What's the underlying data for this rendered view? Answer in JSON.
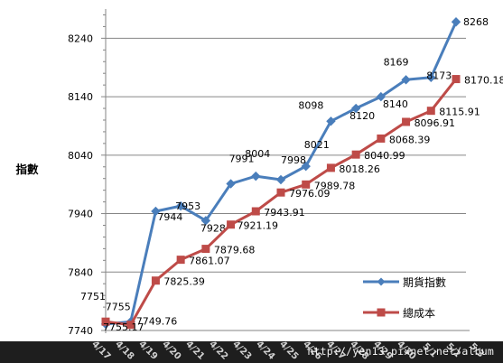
{
  "chart_data": {
    "type": "line",
    "title": "",
    "xlabel": "",
    "ylabel": "指數",
    "ylim": [
      7740,
      8290
    ],
    "yticks": [
      7740,
      7840,
      7940,
      8040,
      8140,
      8240
    ],
    "grid": "horizontal",
    "legend": "bottom-right",
    "x_labels": [
      "4/17",
      "4/18",
      "4/19",
      "4/20",
      "4/21",
      "4/22",
      "4/23",
      "4/24",
      "4/25",
      "4/26",
      "4/27",
      "4/28",
      "4/29",
      "4/30",
      "5/1",
      "5/2",
      "5/3"
    ],
    "series": [
      {
        "name": "期貨指數",
        "color": "#4a7ebb",
        "marker": "diamond",
        "values": [
          7751,
          7755,
          7944,
          7953,
          7928,
          7991,
          8004,
          7998,
          8021,
          8098,
          8120,
          8140,
          8169,
          8173,
          8268
        ],
        "labels": [
          "7751",
          "7755",
          "7944",
          "7953",
          "7928",
          "7991",
          "8004",
          "7998",
          "8021",
          "8098",
          "8120",
          "8140",
          "8169",
          "8173",
          "8268"
        ]
      },
      {
        "name": "總成本",
        "color": "#be4b48",
        "marker": "square",
        "values": [
          7755.17,
          7749.76,
          7825.39,
          7861.07,
          7879.68,
          7921.19,
          7943.91,
          7976.09,
          7989.78,
          8018.26,
          8040.99,
          8068.39,
          8096.91,
          8115.91,
          8170.18
        ],
        "labels": [
          "7755.17",
          "7749.76",
          "7825.39",
          "7861.07",
          "7879.68",
          "7921.19",
          "7943.91",
          "7976.09",
          "7989.78",
          "8018.26",
          "8040.99",
          "8068.39",
          "8096.91",
          "8115.91",
          "8170.18"
        ]
      }
    ]
  },
  "watermark": "http://yen13.pixnet.net/album",
  "colors": {
    "blue": "#4a7ebb",
    "red": "#be4b48",
    "grid": "#868686",
    "watermark_bg": "#1e1e1e"
  }
}
